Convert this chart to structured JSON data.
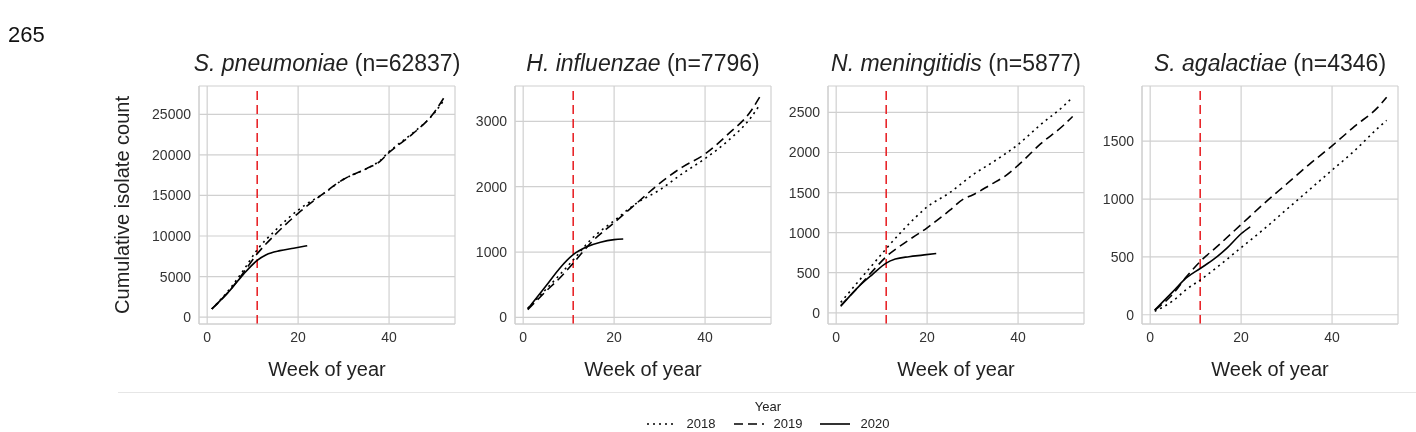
{
  "chart_data": [
    {
      "type": "line",
      "title": "S. pneumoniae (n=62837)",
      "xlabel": "Week of year",
      "ylabel": "Cumulative isolate count",
      "annotations": [
        "265"
      ],
      "legend": "bottom",
      "legend_title": "Year",
      "grid": true,
      "xlim": [
        -1.8,
        54.5
      ],
      "xticks": [
        0,
        20,
        40
      ],
      "ylim": [
        -850,
        28500
      ],
      "yticks": [
        0,
        5000,
        10000,
        15000,
        20000,
        25000
      ],
      "ref_lines": [
        {
          "axis": "x",
          "value": 11,
          "color": "#e8262a",
          "line_style": "dashed"
        }
      ],
      "series": [
        {
          "name": "2018",
          "color": "#000000",
          "line_style": "dotted",
          "x": [
            1,
            5,
            8,
            11,
            15,
            20,
            22,
            25,
            30,
            35,
            38,
            40,
            45,
            50,
            52
          ],
          "values": [
            1000,
            3500,
            5800,
            8300,
            10700,
            13200,
            14000,
            15000,
            17000,
            18300,
            19300,
            20400,
            22600,
            25200,
            26700
          ]
        },
        {
          "name": "2019",
          "color": "#000000",
          "line_style": "dashed",
          "x": [
            1,
            5,
            8,
            11,
            15,
            20,
            25,
            30,
            35,
            38,
            40,
            45,
            50,
            52
          ],
          "values": [
            1000,
            3300,
            5500,
            7800,
            10200,
            12800,
            15000,
            17000,
            18300,
            19200,
            20300,
            22500,
            25300,
            27000
          ]
        },
        {
          "name": "2020",
          "color": "#000000",
          "line_style": "solid",
          "x": [
            1,
            5,
            8,
            11,
            13,
            16,
            19,
            22
          ],
          "values": [
            1000,
            3300,
            5300,
            7000,
            7700,
            8200,
            8500,
            8800
          ]
        }
      ]
    },
    {
      "type": "line",
      "title": "H. influenzae (n=7796)",
      "xlabel": "Week of year",
      "grid": true,
      "xlim": [
        -1.8,
        54.5
      ],
      "xticks": [
        0,
        20,
        40
      ],
      "ylim": [
        -100,
        3540
      ],
      "yticks": [
        0,
        1000,
        2000,
        3000
      ],
      "ref_lines": [
        {
          "axis": "x",
          "value": 11,
          "color": "#e8262a",
          "line_style": "dashed"
        }
      ],
      "series": [
        {
          "name": "2018",
          "color": "#000000",
          "line_style": "dotted",
          "x": [
            1,
            5,
            8,
            11,
            15,
            20,
            25,
            30,
            35,
            40,
            45,
            50,
            52
          ],
          "values": [
            140,
            430,
            650,
            880,
            1200,
            1480,
            1750,
            1950,
            2200,
            2430,
            2700,
            3050,
            3250
          ]
        },
        {
          "name": "2019",
          "color": "#000000",
          "line_style": "dashed",
          "x": [
            1,
            5,
            8,
            11,
            15,
            20,
            25,
            30,
            35,
            40,
            45,
            50,
            52
          ],
          "values": [
            120,
            400,
            600,
            830,
            1150,
            1450,
            1750,
            2050,
            2300,
            2500,
            2800,
            3150,
            3370
          ]
        },
        {
          "name": "2020",
          "color": "#000000",
          "line_style": "solid",
          "x": [
            1,
            5,
            8,
            11,
            14,
            17,
            20,
            22
          ],
          "values": [
            130,
            480,
            750,
            960,
            1080,
            1150,
            1190,
            1200
          ]
        }
      ]
    },
    {
      "type": "line",
      "title": "N. meningitidis (n=5877)",
      "xlabel": "Week of year",
      "grid": true,
      "xlim": [
        -1.8,
        54.5
      ],
      "xticks": [
        0,
        20,
        40
      ],
      "ylim": [
        -140,
        2830
      ],
      "yticks": [
        0,
        500,
        1000,
        1500,
        2000,
        2500
      ],
      "ref_lines": [
        {
          "axis": "x",
          "value": 11,
          "color": "#e8262a",
          "line_style": "dashed"
        }
      ],
      "series": [
        {
          "name": "2018",
          "color": "#000000",
          "line_style": "dotted",
          "x": [
            1,
            5,
            8,
            11,
            15,
            20,
            25,
            30,
            35,
            40,
            45,
            50,
            52
          ],
          "values": [
            130,
            400,
            600,
            800,
            1050,
            1320,
            1500,
            1720,
            1900,
            2100,
            2350,
            2580,
            2690
          ]
        },
        {
          "name": "2019",
          "color": "#000000",
          "line_style": "dashed",
          "x": [
            1,
            5,
            8,
            11,
            15,
            20,
            25,
            28,
            30,
            34,
            37,
            40,
            45,
            50,
            52
          ],
          "values": [
            90,
            330,
            520,
            700,
            870,
            1060,
            1280,
            1420,
            1470,
            1600,
            1700,
            1840,
            2110,
            2340,
            2450
          ]
        },
        {
          "name": "2020",
          "color": "#000000",
          "line_style": "solid",
          "x": [
            1,
            5,
            8,
            11,
            13,
            16,
            19,
            22
          ],
          "values": [
            80,
            330,
            480,
            620,
            670,
            700,
            720,
            740
          ]
        }
      ]
    },
    {
      "type": "line",
      "title": "S. agalactiae (n=4346)",
      "xlabel": "Week of year",
      "grid": true,
      "xlim": [
        -1.8,
        54.5
      ],
      "xticks": [
        0,
        20,
        40
      ],
      "ylim": [
        -80,
        1977
      ],
      "yticks": [
        0,
        500,
        1000,
        1500
      ],
      "ref_lines": [
        {
          "axis": "x",
          "value": 11,
          "color": "#e8262a",
          "line_style": "dashed"
        }
      ],
      "series": [
        {
          "name": "2018",
          "color": "#000000",
          "line_style": "dotted",
          "x": [
            1,
            5,
            8,
            11,
            15,
            20,
            25,
            30,
            35,
            40,
            45,
            50,
            52
          ],
          "values": [
            30,
            120,
            220,
            300,
            420,
            580,
            740,
            910,
            1080,
            1250,
            1420,
            1610,
            1680
          ]
        },
        {
          "name": "2019",
          "color": "#000000",
          "line_style": "dashed",
          "x": [
            1,
            5,
            8,
            11,
            15,
            20,
            25,
            30,
            35,
            40,
            45,
            50,
            52
          ],
          "values": [
            40,
            180,
            330,
            460,
            600,
            780,
            960,
            1130,
            1300,
            1460,
            1630,
            1790,
            1880
          ]
        },
        {
          "name": "2020",
          "color": "#000000",
          "line_style": "solid",
          "x": [
            1,
            5,
            8,
            11,
            14,
            17,
            20,
            22
          ],
          "values": [
            40,
            200,
            320,
            400,
            480,
            580,
            700,
            760
          ]
        }
      ]
    }
  ]
}
